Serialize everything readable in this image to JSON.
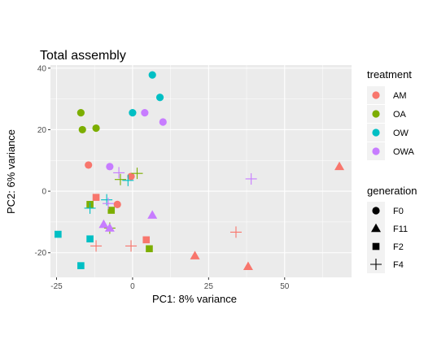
{
  "chart_data": {
    "type": "scatter",
    "title": "Total assembly",
    "xlabel": "PC1: 8% variance",
    "ylabel": "PC2: 6% variance",
    "xlim": [
      -27,
      72
    ],
    "ylim": [
      -28,
      41
    ],
    "x_ticks": [
      -25,
      0,
      25,
      50
    ],
    "y_ticks": [
      -20,
      0,
      20,
      40
    ],
    "grid": true,
    "legends": [
      {
        "title": "treatment",
        "entries": [
          {
            "label": "AM",
            "color": "#F8766D"
          },
          {
            "label": "OA",
            "color": "#7CAE00"
          },
          {
            "label": "OW",
            "color": "#00BFC4"
          },
          {
            "label": "OWA",
            "color": "#C77CFF"
          }
        ]
      },
      {
        "title": "generation",
        "entries": [
          {
            "label": "F0",
            "shape": "circle"
          },
          {
            "label": "F11",
            "shape": "triangle"
          },
          {
            "label": "F2",
            "shape": "square"
          },
          {
            "label": "F4",
            "shape": "plus"
          }
        ]
      }
    ],
    "points": [
      {
        "treatment": "AM",
        "generation": "F0",
        "x": -14.5,
        "y": 8.5
      },
      {
        "treatment": "AM",
        "generation": "F0",
        "x": -0.5,
        "y": 4.8
      },
      {
        "treatment": "AM",
        "generation": "F0",
        "x": -5,
        "y": -4.3
      },
      {
        "treatment": "AM",
        "generation": "F11",
        "x": 68,
        "y": 8
      },
      {
        "treatment": "AM",
        "generation": "F11",
        "x": 20.5,
        "y": -21
      },
      {
        "treatment": "AM",
        "generation": "F11",
        "x": 38,
        "y": -24.5
      },
      {
        "treatment": "AM",
        "generation": "F2",
        "x": -12,
        "y": -2
      },
      {
        "treatment": "AM",
        "generation": "F2",
        "x": 4.5,
        "y": -15.8
      },
      {
        "treatment": "AM",
        "generation": "F4",
        "x": -12,
        "y": -17.8
      },
      {
        "treatment": "AM",
        "generation": "F4",
        "x": -0.5,
        "y": -17.8
      },
      {
        "treatment": "AM",
        "generation": "F4",
        "x": 34,
        "y": -13.3
      },
      {
        "treatment": "OA",
        "generation": "F0",
        "x": -17,
        "y": 25.5
      },
      {
        "treatment": "OA",
        "generation": "F0",
        "x": -16.5,
        "y": 20
      },
      {
        "treatment": "OA",
        "generation": "F0",
        "x": -12,
        "y": 20.5
      },
      {
        "treatment": "OA",
        "generation": "F2",
        "x": -14,
        "y": -4.3
      },
      {
        "treatment": "OA",
        "generation": "F2",
        "x": -7,
        "y": -6.2
      },
      {
        "treatment": "OA",
        "generation": "F2",
        "x": 5.5,
        "y": -18.7
      },
      {
        "treatment": "OA",
        "generation": "F4",
        "x": -4,
        "y": 3.8
      },
      {
        "treatment": "OA",
        "generation": "F4",
        "x": 1.5,
        "y": 5.8
      },
      {
        "treatment": "OA",
        "generation": "F4",
        "x": -7.5,
        "y": -12
      },
      {
        "treatment": "OW",
        "generation": "F0",
        "x": 6.5,
        "y": 37.8
      },
      {
        "treatment": "OW",
        "generation": "F0",
        "x": 9,
        "y": 30.5
      },
      {
        "treatment": "OW",
        "generation": "F0",
        "x": 0,
        "y": 25.5
      },
      {
        "treatment": "OW",
        "generation": "F2",
        "x": -24.5,
        "y": -14
      },
      {
        "treatment": "OW",
        "generation": "F2",
        "x": -14,
        "y": -15.5
      },
      {
        "treatment": "OW",
        "generation": "F2",
        "x": -17,
        "y": -24.2
      },
      {
        "treatment": "OW",
        "generation": "F4",
        "x": -8.5,
        "y": -2.8
      },
      {
        "treatment": "OW",
        "generation": "F4",
        "x": -14,
        "y": -5.5
      },
      {
        "treatment": "OW",
        "generation": "F4",
        "x": -1.5,
        "y": 3.5
      },
      {
        "treatment": "OWA",
        "generation": "F0",
        "x": -7.5,
        "y": 8
      },
      {
        "treatment": "OWA",
        "generation": "F0",
        "x": 4,
        "y": 25.5
      },
      {
        "treatment": "OWA",
        "generation": "F0",
        "x": 10,
        "y": 22.5
      },
      {
        "treatment": "OWA",
        "generation": "F11",
        "x": -9.5,
        "y": -10.8
      },
      {
        "treatment": "OWA",
        "generation": "F11",
        "x": -7.5,
        "y": -12
      },
      {
        "treatment": "OWA",
        "generation": "F11",
        "x": 6.5,
        "y": -7.8
      },
      {
        "treatment": "OWA",
        "generation": "F4",
        "x": -4.5,
        "y": 6
      },
      {
        "treatment": "OWA",
        "generation": "F4",
        "x": 39,
        "y": 4
      },
      {
        "treatment": "OWA",
        "generation": "F4",
        "x": -8,
        "y": -4
      }
    ]
  }
}
